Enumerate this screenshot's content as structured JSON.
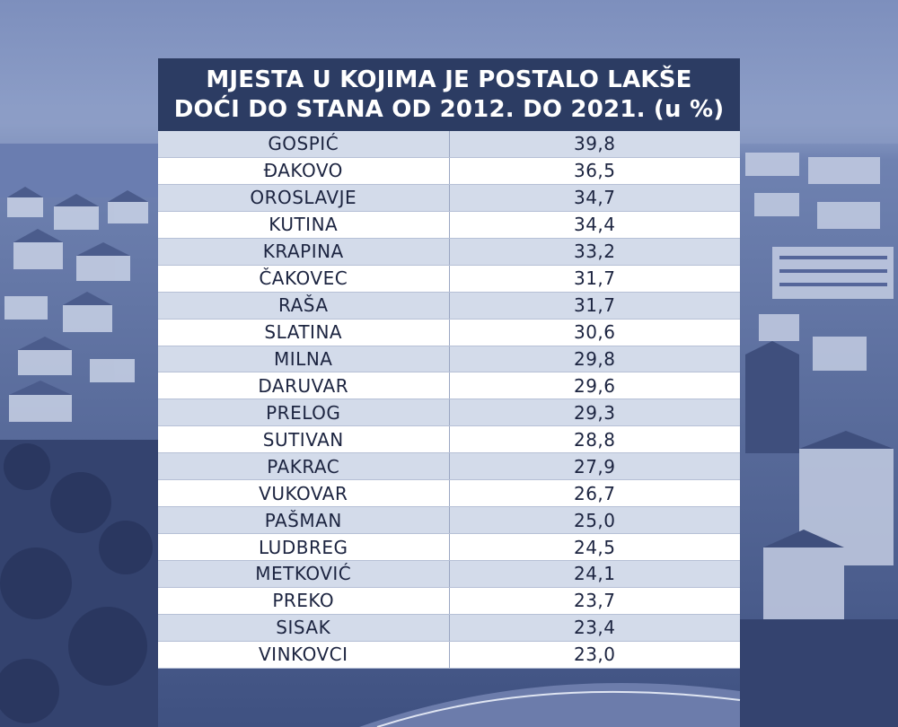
{
  "title_line1": "MJESTA U KOJIMA JE POSTALO LAKŠE",
  "title_line2": "DOĆI DO STANA OD 2012. DO 2021. (u %)",
  "colors": {
    "header_bg": "#2c3c63",
    "row_odd": "#d3dbea",
    "row_even": "#ffffff",
    "text": "#1c2440"
  },
  "chart_data": {
    "type": "table",
    "title": "MJESTA U KOJIMA JE POSTALO LAKŠE DOĆI DO STANA OD 2012. DO 2021. (u %)",
    "rows": [
      {
        "name": "GOSPIĆ",
        "value": "39,8"
      },
      {
        "name": "ĐAKOVO",
        "value": "36,5"
      },
      {
        "name": "OROSLAVJE",
        "value": "34,7"
      },
      {
        "name": "KUTINA",
        "value": "34,4"
      },
      {
        "name": "KRAPINA",
        "value": "33,2"
      },
      {
        "name": "ČAKOVEC",
        "value": "31,7"
      },
      {
        "name": "RAŠA",
        "value": "31,7"
      },
      {
        "name": "SLATINA",
        "value": "30,6"
      },
      {
        "name": "MILNA",
        "value": "29,8"
      },
      {
        "name": "DARUVAR",
        "value": "29,6"
      },
      {
        "name": "PRELOG",
        "value": "29,3"
      },
      {
        "name": "SUTIVAN",
        "value": "28,8"
      },
      {
        "name": "PAKRAC",
        "value": "27,9"
      },
      {
        "name": "VUKOVAR",
        "value": "26,7"
      },
      {
        "name": "PAŠMAN",
        "value": "25,0"
      },
      {
        "name": "LUDBREG",
        "value": "24,5"
      },
      {
        "name": "METKOVIĆ",
        "value": "24,1"
      },
      {
        "name": "PREKO",
        "value": "23,7"
      },
      {
        "name": "SISAK",
        "value": "23,4"
      },
      {
        "name": "VINKOVCI",
        "value": "23,0"
      }
    ]
  }
}
